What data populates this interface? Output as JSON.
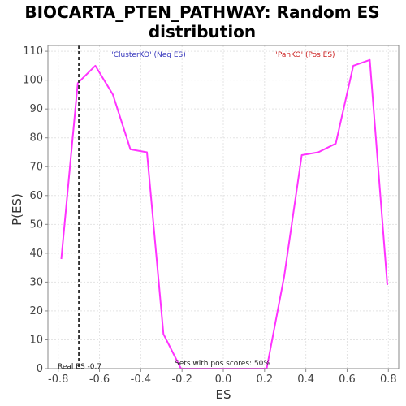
{
  "chart_data": {
    "type": "line",
    "title_lines": [
      "BIOCARTA_PTEN_PATHWAY: Random ES",
      "distribution"
    ],
    "xlabel": "ES",
    "ylabel": "P(ES)",
    "xlim": [
      -0.85,
      0.85
    ],
    "ylim": [
      0,
      112
    ],
    "xticks": [
      -0.8,
      -0.6,
      -0.4,
      -0.2,
      0.0,
      0.2,
      0.4,
      0.6,
      0.8
    ],
    "xtick_labels": [
      "-0.8",
      "-0.6",
      "-0.4",
      "-0.2",
      "0.0",
      "0.2",
      "0.4",
      "0.6",
      "0.8"
    ],
    "yticks": [
      0,
      10,
      20,
      30,
      40,
      50,
      60,
      70,
      80,
      90,
      100,
      110
    ],
    "ytick_labels": [
      "0",
      "10",
      "20",
      "30",
      "40",
      "50",
      "60",
      "70",
      "80",
      "90",
      "100",
      "110"
    ],
    "grid": true,
    "series": [
      {
        "color": "#ff33ff",
        "x": [
          -0.785,
          -0.705,
          -0.62,
          -0.535,
          -0.45,
          -0.37,
          -0.29,
          -0.205,
          -0.12,
          -0.04,
          0.045,
          0.125,
          0.21,
          0.295,
          0.38,
          0.46,
          0.545,
          0.63,
          0.71,
          0.795
        ],
        "y": [
          38,
          99,
          105,
          95,
          76,
          75,
          12,
          0,
          0,
          0,
          0,
          0,
          0,
          32,
          74,
          75,
          78,
          105,
          107,
          29
        ]
      }
    ],
    "real_es": -0.7,
    "real_es_color": "#333333",
    "annotations": {
      "neg_label": "'ClusterKO' (Neg ES)",
      "neg_color": "#3333bb",
      "pos_label": "'PanKO' (Pos ES)",
      "pos_color": "#cc2222",
      "real_es_label": "Real ES -0.7",
      "pos_scores_label": "Sets with pos scores: 50%"
    }
  }
}
